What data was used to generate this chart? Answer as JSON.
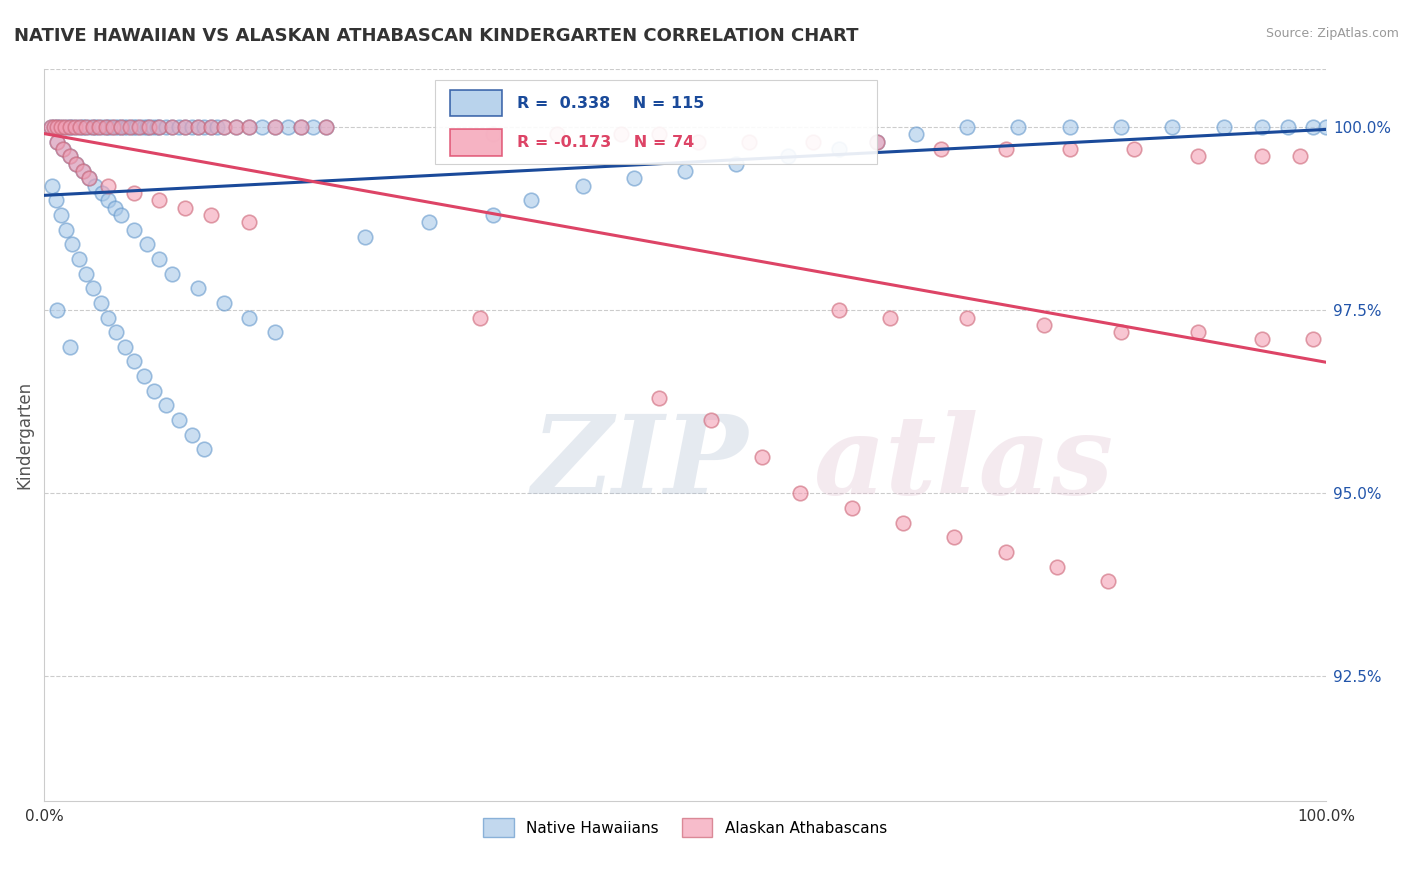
{
  "title": "NATIVE HAWAIIAN VS ALASKAN ATHABASCAN KINDERGARTEN CORRELATION CHART",
  "source_text": "Source: ZipAtlas.com",
  "ylabel": "Kindergarten",
  "xmin": 0.0,
  "xmax": 1.0,
  "ymin": 0.908,
  "ymax": 1.008,
  "yticks": [
    0.925,
    0.95,
    0.975,
    1.0
  ],
  "ytick_labels": [
    "92.5%",
    "95.0%",
    "97.5%",
    "100.0%"
  ],
  "xtick_positions": [
    0.0,
    0.5,
    1.0
  ],
  "xtick_labels": [
    "0.0%",
    "",
    "100.0%"
  ],
  "blue_color": "#A8C8E8",
  "pink_color": "#F4A0B5",
  "blue_line_color": "#1A4A9A",
  "pink_line_color": "#DD4466",
  "R_blue": 0.338,
  "N_blue": 115,
  "R_pink": -0.173,
  "N_pink": 74,
  "legend_label_blue": "Native Hawaiians",
  "legend_label_pink": "Alaskan Athabascans",
  "watermark_zip": "ZIP",
  "watermark_atlas": "atlas",
  "background_color": "#ffffff",
  "blue_scatter_x": [
    0.005,
    0.008,
    0.01,
    0.012,
    0.015,
    0.018,
    0.02,
    0.022,
    0.025,
    0.028,
    0.03,
    0.032,
    0.035,
    0.038,
    0.04,
    0.042,
    0.045,
    0.048,
    0.05,
    0.052,
    0.055,
    0.058,
    0.06,
    0.062,
    0.065,
    0.068,
    0.07,
    0.072,
    0.075,
    0.078,
    0.08,
    0.082,
    0.085,
    0.088,
    0.09,
    0.095,
    0.1,
    0.105,
    0.11,
    0.115,
    0.12,
    0.125,
    0.13,
    0.135,
    0.14,
    0.15,
    0.16,
    0.17,
    0.18,
    0.19,
    0.2,
    0.21,
    0.22,
    0.01,
    0.015,
    0.02,
    0.025,
    0.03,
    0.035,
    0.04,
    0.045,
    0.05,
    0.055,
    0.06,
    0.07,
    0.08,
    0.09,
    0.1,
    0.12,
    0.14,
    0.16,
    0.18,
    0.25,
    0.3,
    0.35,
    0.38,
    0.42,
    0.46,
    0.5,
    0.54,
    0.58,
    0.62,
    0.65,
    0.68,
    0.72,
    0.76,
    0.8,
    0.84,
    0.88,
    0.92,
    0.95,
    0.97,
    0.99,
    1.0,
    0.006,
    0.009,
    0.013,
    0.017,
    0.022,
    0.027,
    0.033,
    0.038,
    0.044,
    0.05,
    0.056,
    0.063,
    0.07,
    0.078,
    0.086,
    0.095,
    0.105,
    0.115,
    0.125,
    0.01,
    0.02
  ],
  "blue_scatter_y": [
    1.0,
    1.0,
    1.0,
    1.0,
    1.0,
    1.0,
    1.0,
    1.0,
    1.0,
    1.0,
    1.0,
    1.0,
    1.0,
    1.0,
    1.0,
    1.0,
    1.0,
    1.0,
    1.0,
    1.0,
    1.0,
    1.0,
    1.0,
    1.0,
    1.0,
    1.0,
    1.0,
    1.0,
    1.0,
    1.0,
    1.0,
    1.0,
    1.0,
    1.0,
    1.0,
    1.0,
    1.0,
    1.0,
    1.0,
    1.0,
    1.0,
    1.0,
    1.0,
    1.0,
    1.0,
    1.0,
    1.0,
    1.0,
    1.0,
    1.0,
    1.0,
    1.0,
    1.0,
    0.998,
    0.997,
    0.996,
    0.995,
    0.994,
    0.993,
    0.992,
    0.991,
    0.99,
    0.989,
    0.988,
    0.986,
    0.984,
    0.982,
    0.98,
    0.978,
    0.976,
    0.974,
    0.972,
    0.985,
    0.987,
    0.988,
    0.99,
    0.992,
    0.993,
    0.994,
    0.995,
    0.996,
    0.997,
    0.998,
    0.999,
    1.0,
    1.0,
    1.0,
    1.0,
    1.0,
    1.0,
    1.0,
    1.0,
    1.0,
    1.0,
    0.992,
    0.99,
    0.988,
    0.986,
    0.984,
    0.982,
    0.98,
    0.978,
    0.976,
    0.974,
    0.972,
    0.97,
    0.968,
    0.966,
    0.964,
    0.962,
    0.96,
    0.958,
    0.956,
    0.975,
    0.97
  ],
  "pink_scatter_x": [
    0.005,
    0.008,
    0.01,
    0.013,
    0.016,
    0.02,
    0.024,
    0.028,
    0.033,
    0.038,
    0.043,
    0.048,
    0.054,
    0.06,
    0.067,
    0.074,
    0.082,
    0.09,
    0.1,
    0.11,
    0.12,
    0.13,
    0.14,
    0.15,
    0.16,
    0.18,
    0.2,
    0.22,
    0.01,
    0.015,
    0.02,
    0.025,
    0.03,
    0.035,
    0.05,
    0.07,
    0.09,
    0.11,
    0.13,
    0.16,
    0.35,
    0.4,
    0.45,
    0.48,
    0.51,
    0.55,
    0.6,
    0.65,
    0.7,
    0.75,
    0.8,
    0.85,
    0.9,
    0.95,
    0.98,
    0.34,
    0.62,
    0.66,
    0.72,
    0.78,
    0.84,
    0.9,
    0.95,
    0.99,
    0.48,
    0.52,
    0.56,
    0.59,
    0.63,
    0.67,
    0.71,
    0.75,
    0.79,
    0.83
  ],
  "pink_scatter_y": [
    1.0,
    1.0,
    1.0,
    1.0,
    1.0,
    1.0,
    1.0,
    1.0,
    1.0,
    1.0,
    1.0,
    1.0,
    1.0,
    1.0,
    1.0,
    1.0,
    1.0,
    1.0,
    1.0,
    1.0,
    1.0,
    1.0,
    1.0,
    1.0,
    1.0,
    1.0,
    1.0,
    1.0,
    0.998,
    0.997,
    0.996,
    0.995,
    0.994,
    0.993,
    0.992,
    0.991,
    0.99,
    0.989,
    0.988,
    0.987,
    0.999,
    0.999,
    0.999,
    0.999,
    0.998,
    0.998,
    0.998,
    0.998,
    0.997,
    0.997,
    0.997,
    0.997,
    0.996,
    0.996,
    0.996,
    0.974,
    0.975,
    0.974,
    0.974,
    0.973,
    0.972,
    0.972,
    0.971,
    0.971,
    0.963,
    0.96,
    0.955,
    0.95,
    0.948,
    0.946,
    0.944,
    0.942,
    0.94,
    0.938
  ]
}
